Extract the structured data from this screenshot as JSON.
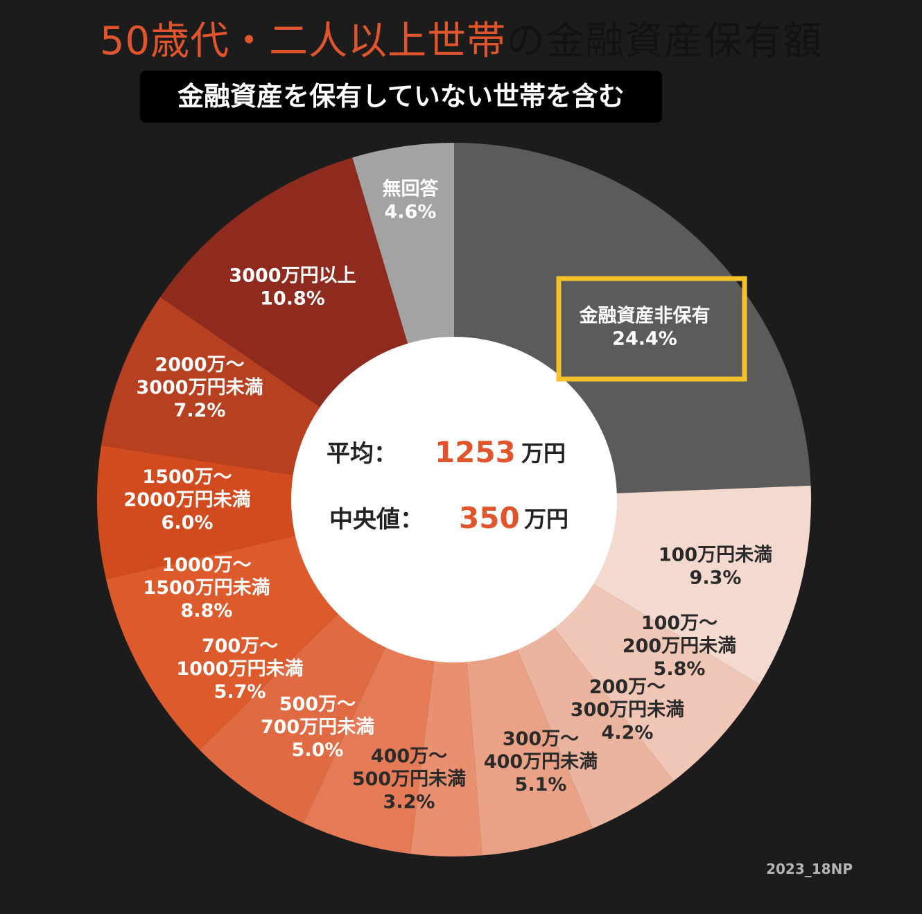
{
  "header": {
    "title_accent": "50歳代・二人以上世帯",
    "title_rest": "の金融資産保有額",
    "subtitle": "金融資産を保有していない世帯を含む"
  },
  "center": {
    "mean_label": "平均：",
    "mean_value": "1253",
    "mean_unit": "万円",
    "median_label": "中央値：",
    "median_value": "350",
    "median_unit": "万円"
  },
  "footer": {
    "source_code": "2023_18NP"
  },
  "colors": {
    "accent": "#e0552c",
    "highlight_box": "#f5c22a",
    "background": "#1c1c1c"
  },
  "chart_data": {
    "type": "pie",
    "title": "50歳代・二人以上世帯の金融資産保有額",
    "subtitle": "金融資産を保有していない世帯を含む",
    "highlight": "金融資産非保有",
    "slices": [
      {
        "label_lines": [
          "金融資産非保有"
        ],
        "pct": "24.4%",
        "value": 24.4,
        "color": "#5b5b5b",
        "text_color": "#ffffff"
      },
      {
        "label_lines": [
          "100万円未満"
        ],
        "pct": "9.3%",
        "value": 9.3,
        "color": "#f4d9cf",
        "text_color": "#2a2a2a"
      },
      {
        "label_lines": [
          "100万～",
          "200万円未満"
        ],
        "pct": "5.8%",
        "value": 5.8,
        "color": "#f0c6b6",
        "text_color": "#2a2a2a"
      },
      {
        "label_lines": [
          "200万～",
          "300万円未満"
        ],
        "pct": "4.2%",
        "value": 4.2,
        "color": "#ebb49e",
        "text_color": "#2a2a2a"
      },
      {
        "label_lines": [
          "300万～",
          "400万円未満"
        ],
        "pct": "5.1%",
        "value": 5.1,
        "color": "#e9a286",
        "text_color": "#2a2a2a"
      },
      {
        "label_lines": [
          "400万～",
          "500万円未満"
        ],
        "pct": "3.2%",
        "value": 3.2,
        "color": "#e8906f",
        "text_color": "#2a2a2a"
      },
      {
        "label_lines": [
          "500万～",
          "700万円未満"
        ],
        "pct": "5.0%",
        "value": 5.0,
        "color": "#e57b56",
        "text_color": "#ffffff"
      },
      {
        "label_lines": [
          "700万～",
          "1000万円未満"
        ],
        "pct": "5.7%",
        "value": 5.7,
        "color": "#e06a41",
        "text_color": "#ffffff"
      },
      {
        "label_lines": [
          "1000万～",
          "1500万円未満"
        ],
        "pct": "8.8%",
        "value": 8.8,
        "color": "#dc5a2c",
        "text_color": "#ffffff"
      },
      {
        "label_lines": [
          "1500万～",
          "2000万円未満"
        ],
        "pct": "6.0%",
        "value": 6.0,
        "color": "#d24b1f",
        "text_color": "#ffffff"
      },
      {
        "label_lines": [
          "2000万～",
          "3000万円未満"
        ],
        "pct": "7.2%",
        "value": 7.2,
        "color": "#b6401f",
        "text_color": "#ffffff"
      },
      {
        "label_lines": [
          "3000万円以上"
        ],
        "pct": "10.8%",
        "value": 10.8,
        "color": "#8f2b1e",
        "text_color": "#ffffff"
      },
      {
        "label_lines": [
          "無回答"
        ],
        "pct": "4.6%",
        "value": 4.6,
        "color": "#a3a3a3",
        "text_color": "#ffffff"
      }
    ]
  }
}
